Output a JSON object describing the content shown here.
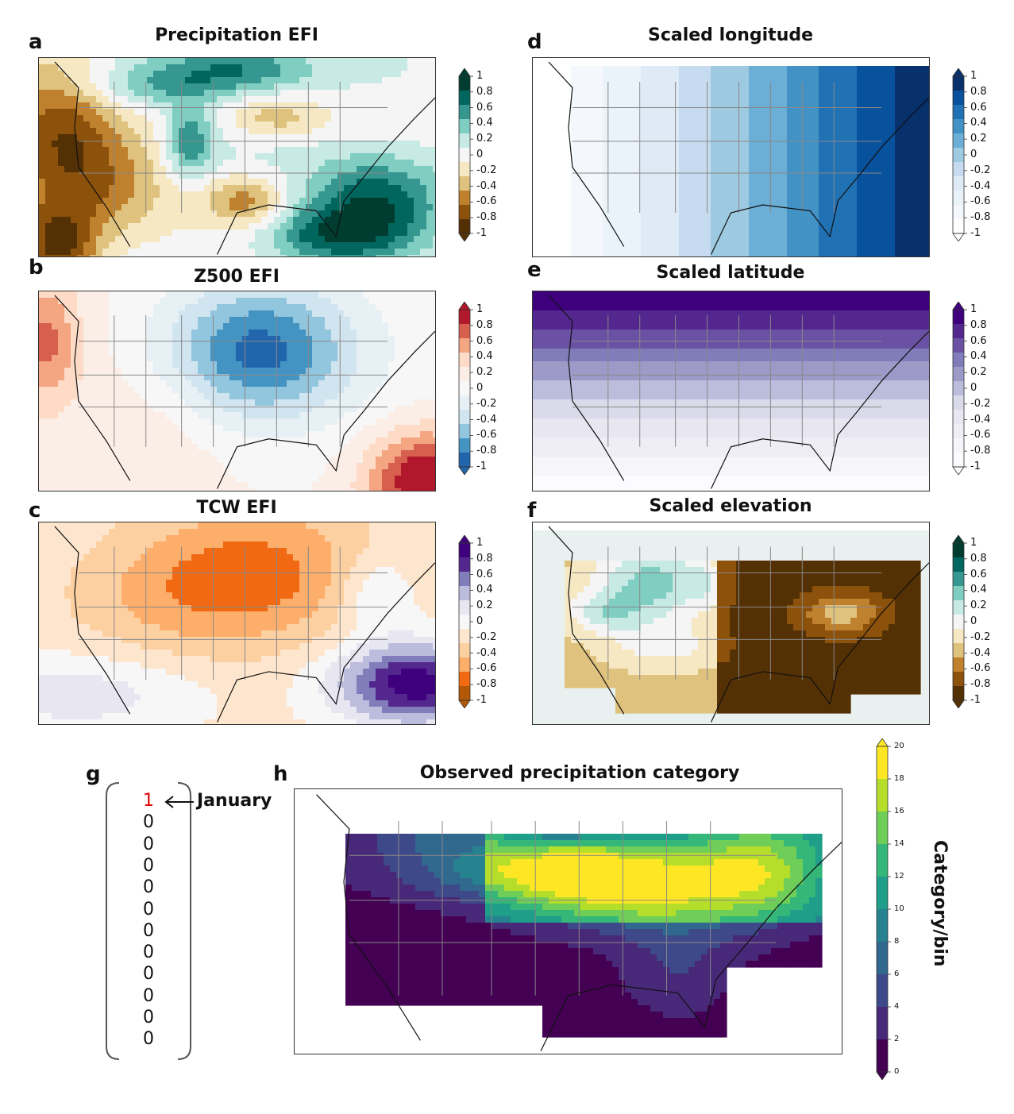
{
  "chart_data": [
    {
      "panel": "a",
      "title": "Precipitation EFI",
      "type": "heatmap",
      "colorbar": {
        "ticks": [
          "1",
          "0.8",
          "0.6",
          "0.4",
          "0.2",
          "0",
          "-0.2",
          "-0.4",
          "-0.6",
          "-0.8",
          "-1"
        ],
        "colors": [
          "#003c30",
          "#01665e",
          "#35978f",
          "#80cdc1",
          "#c7eae5",
          "#f5f5f5",
          "#f6e8c3",
          "#dfc27d",
          "#bf812d",
          "#8c510a",
          "#543005"
        ]
      }
    },
    {
      "panel": "b",
      "title": "Z500 EFI",
      "type": "heatmap",
      "colorbar": {
        "ticks": [
          "1",
          "0.8",
          "0.6",
          "0.4",
          "0.2",
          "0",
          "-0.2",
          "-0.4",
          "-0.6",
          "-0.8",
          "-1"
        ],
        "colors": [
          "#b2182b",
          "#d6604d",
          "#f4a582",
          "#fddbc7",
          "#fbeee6",
          "#f7f7f7",
          "#e6f0f5",
          "#d1e5f0",
          "#92c5de",
          "#4393c3",
          "#2166ac"
        ]
      }
    },
    {
      "panel": "c",
      "title": "TCW EFI",
      "type": "heatmap",
      "colorbar": {
        "ticks": [
          "1",
          "0.8",
          "0.6",
          "0.4",
          "0.2",
          "0",
          "-0.2",
          "-0.4",
          "-0.6",
          "-0.8",
          "-1"
        ],
        "colors": [
          "#3f007d",
          "#54278f",
          "#807dba",
          "#bcbddc",
          "#e7e6f1",
          "#f7f7f7",
          "#fee6ce",
          "#fdd0a2",
          "#fdae6b",
          "#f16913",
          "#b35806"
        ]
      }
    },
    {
      "panel": "d",
      "title": "Scaled longitude",
      "type": "heatmap",
      "colorbar": {
        "ticks": [
          "1",
          "0.8",
          "0.6",
          "0.4",
          "0.2",
          "0",
          "-0.2",
          "-0.4",
          "-0.6",
          "-0.8",
          "-1"
        ],
        "colors": [
          "#08306b",
          "#08519c",
          "#2171b5",
          "#4292c6",
          "#6baed6",
          "#9ecae1",
          "#c6dbef",
          "#deebf7",
          "#eaf2fa",
          "#f4f8fc",
          "#ffffff"
        ]
      }
    },
    {
      "panel": "e",
      "title": "Scaled latitude",
      "type": "heatmap",
      "colorbar": {
        "ticks": [
          "1",
          "0.8",
          "0.6",
          "0.4",
          "0.2",
          "0",
          "-0.2",
          "-0.4",
          "-0.6",
          "-0.8",
          "-1"
        ],
        "colors": [
          "#3f007d",
          "#54278f",
          "#6a51a3",
          "#807dba",
          "#9e9ac8",
          "#bcbddc",
          "#dadaeb",
          "#e7e6f1",
          "#efedf5",
          "#f6f5fa",
          "#fcfbfd"
        ]
      }
    },
    {
      "panel": "f",
      "title": "Scaled elevation",
      "type": "heatmap",
      "colorbar": {
        "ticks": [
          "1",
          "0.8",
          "0.6",
          "0.4",
          "0.2",
          "0",
          "-0.2",
          "-0.4",
          "-0.6",
          "-0.8",
          "-1"
        ],
        "colors": [
          "#003c30",
          "#01665e",
          "#35978f",
          "#80cdc1",
          "#c7eae5",
          "#f5f5f5",
          "#f6e8c3",
          "#dfc27d",
          "#bf812d",
          "#8c510a",
          "#543005"
        ]
      }
    },
    {
      "panel": "h",
      "title": "Observed precipitation category",
      "type": "heatmap",
      "colorbar": {
        "label": "Category/bin",
        "ticks": [
          "20",
          "18",
          "16",
          "14",
          "12",
          "10",
          "8",
          "6",
          "4",
          "2",
          "0"
        ],
        "colors": [
          "#fde725",
          "#b5de2b",
          "#6ece58",
          "#35b779",
          "#1f9e89",
          "#26828e",
          "#31688e",
          "#3e4989",
          "#482878",
          "#440154"
        ]
      }
    }
  ],
  "panel_letters": {
    "a": "a",
    "b": "b",
    "c": "c",
    "d": "d",
    "e": "e",
    "f": "f",
    "g": "g",
    "h": "h"
  },
  "month_vector": {
    "values": [
      "1",
      "0",
      "0",
      "0",
      "0",
      "0",
      "0",
      "0",
      "0",
      "0",
      "0",
      "0"
    ],
    "highlight_color": "#e00000",
    "label": "January"
  }
}
